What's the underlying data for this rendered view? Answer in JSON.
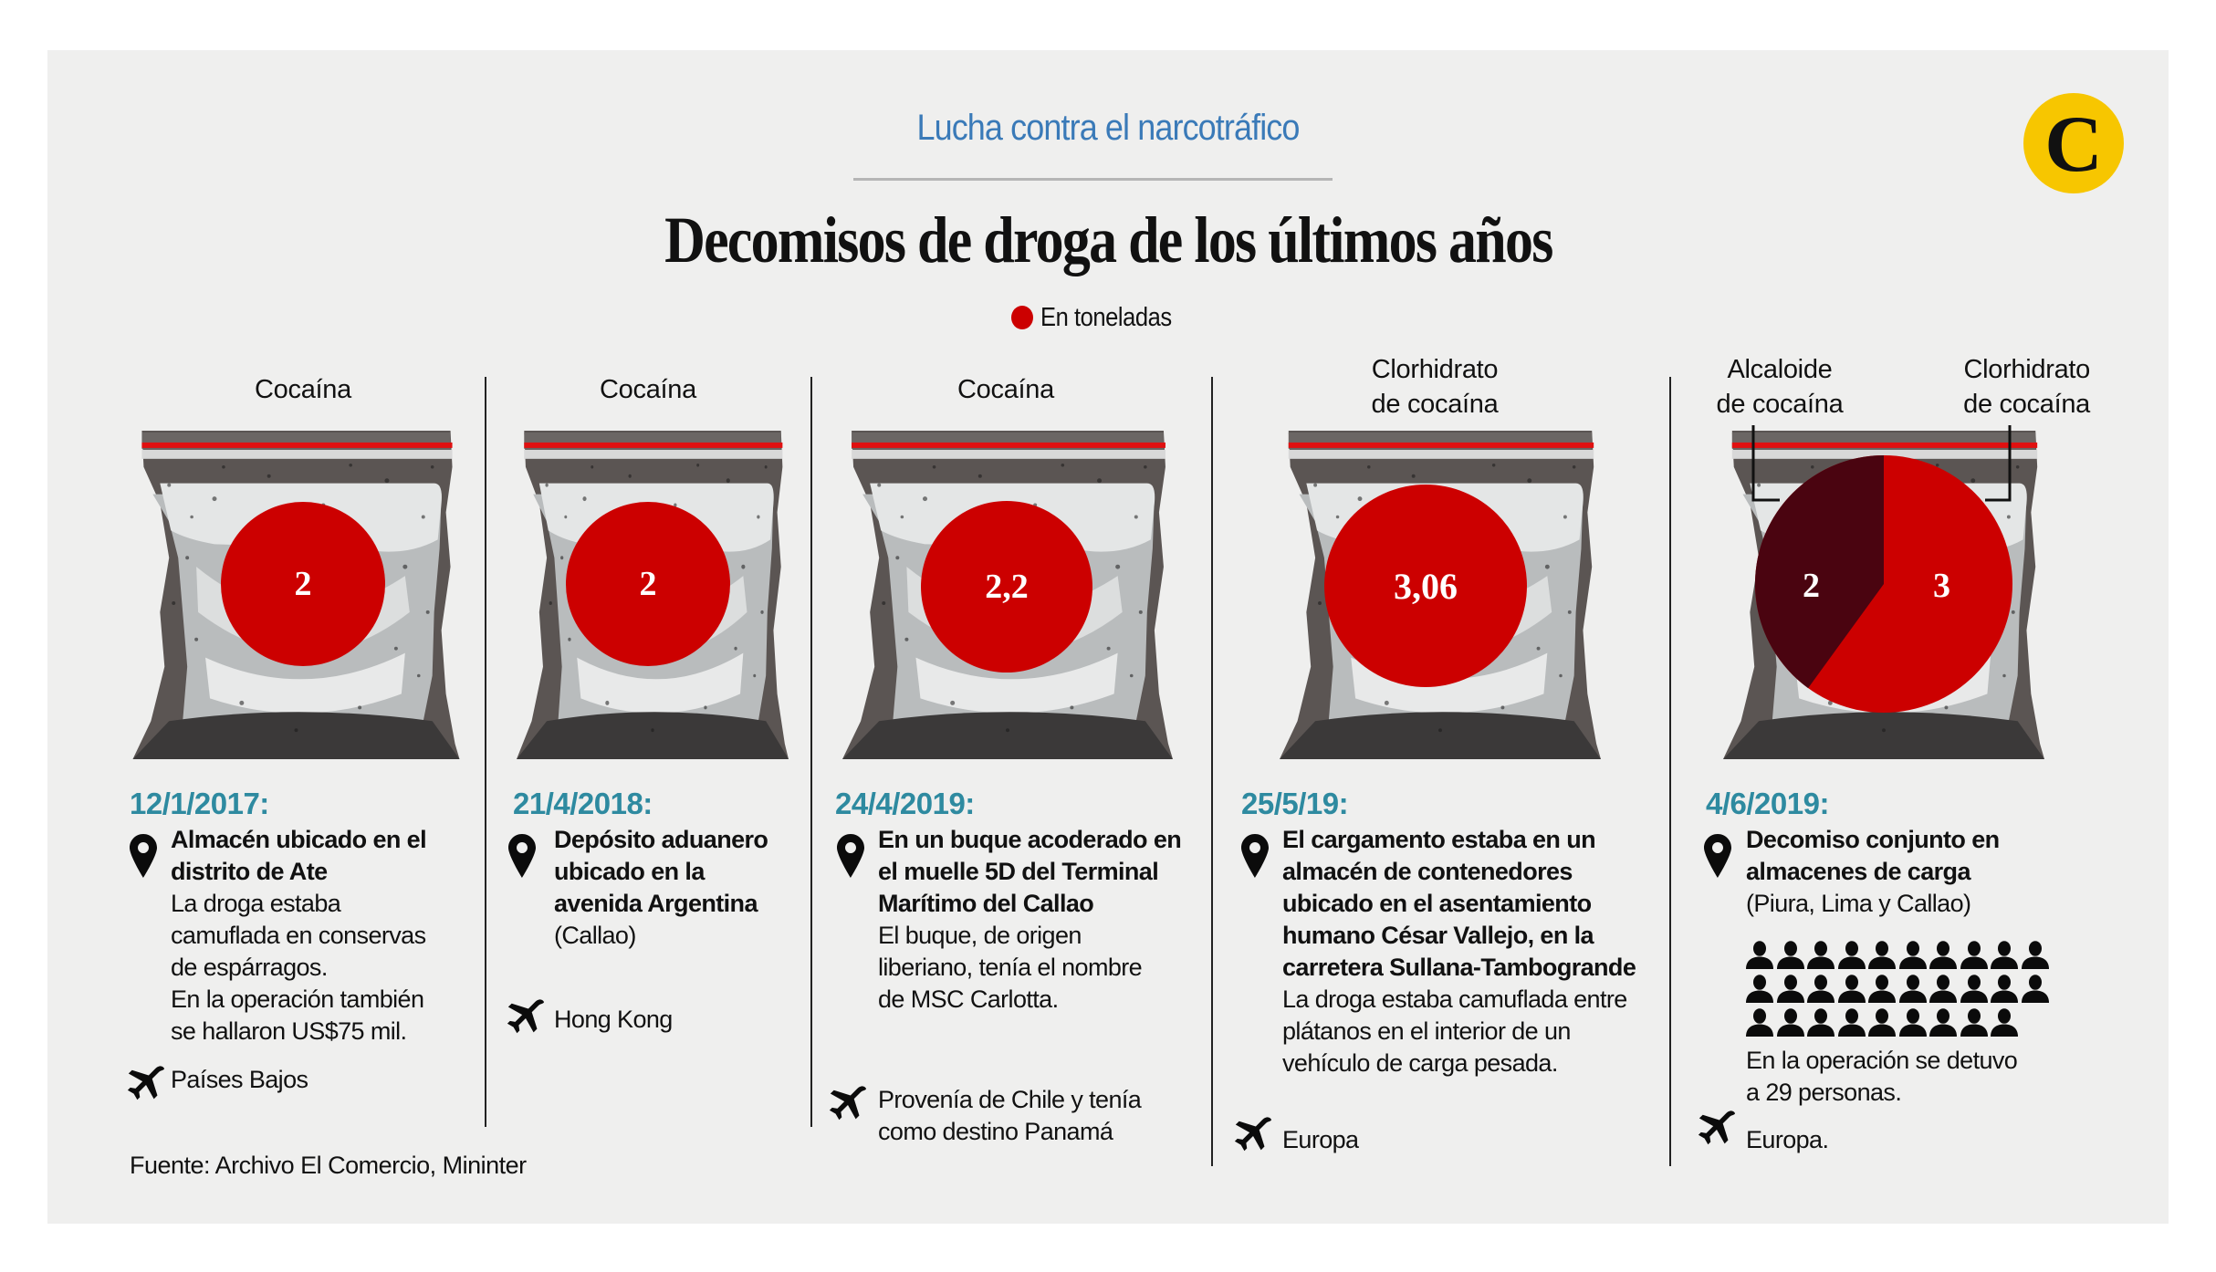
{
  "header": {
    "kicker": "Lucha contra el narcotráfico",
    "title": "Decomisos de droga de los últimos años",
    "legend": {
      "label": "En toneladas",
      "color": "#cc0000"
    },
    "logo_letter": "C"
  },
  "colors": {
    "background": "#efefee",
    "accent_red": "#cc0000",
    "dark_slice": "#4a0410",
    "date_teal": "#2e8aa0",
    "kicker_blue": "#3a7ab8",
    "logo_yellow": "#f7c600"
  },
  "seizures": [
    {
      "category": "Cocaína",
      "amount": "2",
      "date": "12/1/2017:",
      "location_bold": [
        "Almacén ubicado en el",
        "distrito de Ate"
      ],
      "details": [
        "La droga estaba",
        "camuflada en conservas",
        "de espárragos.",
        "En la operación también",
        "se hallaron US$75 mil."
      ],
      "destination": [
        "Países Bajos"
      ]
    },
    {
      "category": "Cocaína",
      "amount": "2",
      "date": "21/4/2018:",
      "location_bold": [
        "Depósito aduanero",
        "ubicado en la",
        "avenida Argentina"
      ],
      "details": [
        "(Callao)"
      ],
      "destination": [
        "Hong Kong"
      ]
    },
    {
      "category": "Cocaína",
      "amount": "2,2",
      "date": "24/4/2019:",
      "location_bold": [
        "En un buque acoderado en",
        "el muelle 5D del Terminal",
        "Marítimo del Callao"
      ],
      "details": [
        "El buque, de origen",
        "liberiano, tenía el nombre",
        "de MSC Carlotta."
      ],
      "destination": [
        "Provenía de Chile y tenía",
        "como destino Panamá"
      ]
    },
    {
      "category": [
        "Clorhidrato",
        "de cocaína"
      ],
      "amount": "3,06",
      "date": "25/5/19:",
      "location_bold": [
        "El cargamento estaba en un",
        "almacén de contenedores",
        "ubicado en el asentamiento",
        "humano César Vallejo, en la",
        "carretera Sullana-Tambogrande"
      ],
      "details": [
        "La droga estaba camuflada entre",
        "plátanos en el interior de un",
        "vehículo de carga pesada."
      ],
      "destination": [
        "Europa"
      ]
    },
    {
      "category_left": [
        "Alcaloide",
        "de cocaína"
      ],
      "category_right": [
        "Clorhidrato",
        "de cocaína"
      ],
      "amount_left": "2",
      "amount_right": "3",
      "date": "4/6/2019:",
      "location_bold": [
        "Decomiso conjunto en",
        "almacenes de carga"
      ],
      "details": [
        "(Piura, Lima y Callao)"
      ],
      "detained_count": 29,
      "detained_text": [
        "En la operación se detuvo",
        "a 29 personas."
      ],
      "destination": [
        "Europa."
      ]
    }
  ],
  "source": "Fuente: Archivo El Comercio, Mininter",
  "chart_data": {
    "type": "bar",
    "title": "Decomisos de droga de los últimos años",
    "subtitle": "Lucha contra el narcotráfico",
    "unit": "toneladas",
    "categories": [
      "12/1/2017",
      "21/4/2018",
      "24/4/2019",
      "25/5/19",
      "4/6/2019"
    ],
    "series": [
      {
        "name": "Cocaína",
        "values": [
          2,
          2,
          2.2,
          null,
          null
        ]
      },
      {
        "name": "Clorhidrato de cocaína",
        "values": [
          null,
          null,
          null,
          3.06,
          3
        ]
      },
      {
        "name": "Alcaloide de cocaína",
        "values": [
          null,
          null,
          null,
          null,
          2
        ]
      }
    ],
    "pie": {
      "date": "4/6/2019",
      "slices": [
        {
          "label": "Alcaloide de cocaína",
          "value": 2,
          "color": "#4a0410"
        },
        {
          "label": "Clorhidrato de cocaína",
          "value": 3,
          "color": "#cc0000"
        }
      ]
    },
    "legend": [
      "En toneladas"
    ],
    "source": "Fuente: Archivo El Comercio, Mininter"
  }
}
